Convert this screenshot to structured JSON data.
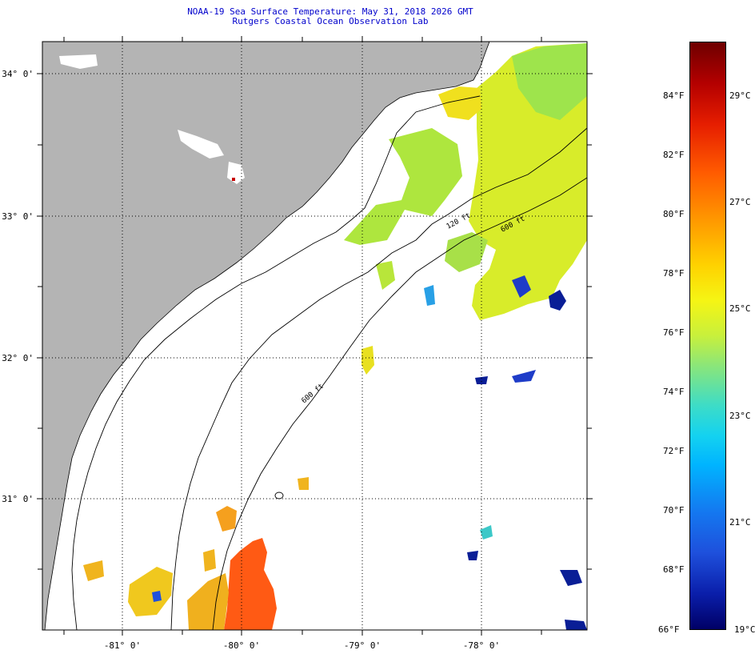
{
  "title_line1": "NOAA-19 Sea Surface Temperature:  May 31, 2018 2026 GMT",
  "title_line2": "Rutgers Coastal Ocean Observation Lab",
  "lat_labels": [
    "34° 0'",
    "33° 0'",
    "32° 0'",
    "31° 0'"
  ],
  "lon_labels": [
    "-81° 0'",
    "-80° 0'",
    "-79° 0'",
    "-78° 0'"
  ],
  "contour_labels": [
    "120 ft",
    "600 ft",
    "600 ft"
  ],
  "colorbar": {
    "fahrenheit": [
      "84°F",
      "82°F",
      "80°F",
      "78°F",
      "76°F",
      "74°F",
      "72°F",
      "70°F",
      "68°F",
      "66°F"
    ],
    "celsius": [
      "29°C",
      "27°C",
      "25°C",
      "23°C",
      "21°C",
      "19°C"
    ],
    "range_f": [
      66,
      86
    ],
    "range_c": [
      19,
      30
    ]
  },
  "colors": {
    "land": "#b4b4b4",
    "ocean_no_data": "#ffffff",
    "title": "#0000cc",
    "warm": "#ff5a14",
    "mid": "#e6f01e",
    "cool": "#0a1e96"
  }
}
